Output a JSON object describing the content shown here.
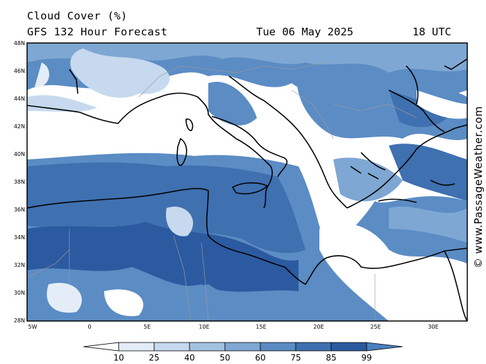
{
  "header": {
    "title": "Cloud Cover (%)",
    "subtitle": "GFS 132 Hour Forecast",
    "date": "Tue 06 May 2025",
    "time": "18 UTC"
  },
  "map": {
    "region": "Central Mediterranean",
    "lat_labels": [
      "48N",
      "46N",
      "44N",
      "42N",
      "40N",
      "38N",
      "36N",
      "34N",
      "32N",
      "30N",
      "28N"
    ],
    "lon_labels": [
      "5W",
      "0",
      "5E",
      "10E",
      "15E",
      "20E",
      "25E",
      "30E"
    ]
  },
  "colorbar": {
    "labels": [
      "10",
      "25",
      "40",
      "50",
      "60",
      "75",
      "85",
      "99"
    ],
    "colors": [
      "#ffffff",
      "#e4edf7",
      "#c6d9ee",
      "#a3c2e2",
      "#7ea7d3",
      "#5b8cc4",
      "#3f70b0",
      "#2b5aa0",
      "#4a7fc0"
    ]
  },
  "credit": "© www.PassageWeather.com"
}
